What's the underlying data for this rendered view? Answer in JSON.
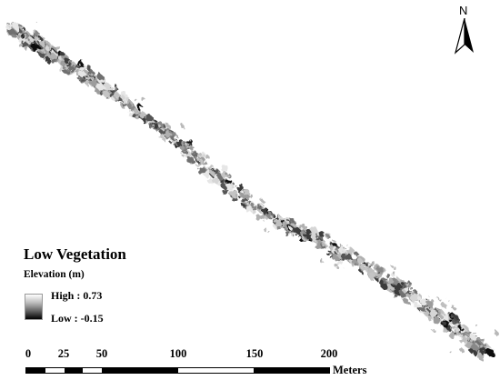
{
  "map": {
    "north_label": "N",
    "north_icon": "north-arrow-icon"
  },
  "legend": {
    "title": "Low Vegetation",
    "subtitle": "Elevation (m)",
    "high_label": "High : 0.73",
    "low_label": "Low : -0.15",
    "high_value": 0.73,
    "low_value": -0.15,
    "ramp_colors": [
      "#ffffff",
      "#000000"
    ]
  },
  "scale_bar": {
    "unit": "Meters",
    "ticks": [
      "0",
      "25",
      "50",
      "100",
      "150",
      "200"
    ],
    "tick_values": [
      0,
      25,
      50,
      100,
      150,
      200
    ],
    "segments": [
      {
        "from": 0,
        "to": 12.5,
        "color": "#000000"
      },
      {
        "from": 12.5,
        "to": 25,
        "color": "#ffffff"
      },
      {
        "from": 25,
        "to": 37.5,
        "color": "#000000"
      },
      {
        "from": 37.5,
        "to": 50,
        "color": "#ffffff"
      },
      {
        "from": 50,
        "to": 100,
        "color": "#000000"
      },
      {
        "from": 100,
        "to": 150,
        "color": "#ffffff"
      },
      {
        "from": 150,
        "to": 200,
        "color": "#000000"
      }
    ]
  }
}
